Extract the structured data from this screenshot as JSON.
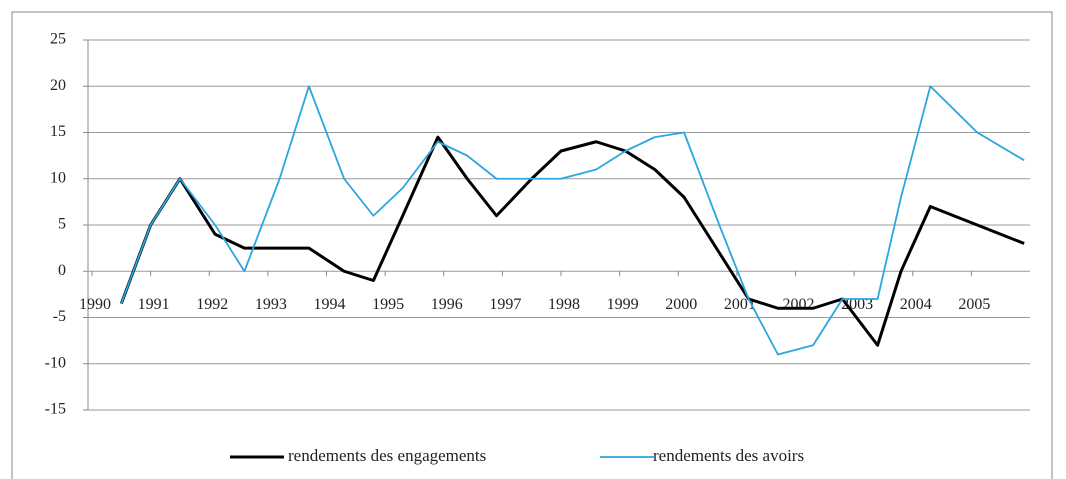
{
  "chart_data": {
    "type": "line",
    "x": [
      1990.5,
      1991.0,
      1991.5,
      1992.1,
      1992.6,
      1993.2,
      1993.7,
      1994.3,
      1994.8,
      1995.3,
      1995.9,
      1996.4,
      1996.9,
      1997.5,
      1998.0,
      1998.6,
      1999.1,
      1999.6,
      2000.1,
      2000.7,
      2001.2,
      2001.7,
      2002.3,
      2002.8,
      2003.4,
      2003.8,
      2004.3,
      2005.1,
      2005.9
    ],
    "series": [
      {
        "name": "rendements des engagements",
        "color": "#000000",
        "values": [
          -3.5,
          5,
          10,
          4,
          2.5,
          2.5,
          2.5,
          0,
          -1,
          6,
          14.5,
          10,
          6,
          10,
          13,
          14,
          13,
          11,
          8,
          2,
          -3,
          -4,
          -4,
          -3,
          -8,
          0,
          7,
          5,
          3
        ]
      },
      {
        "name": "rendements des avoirs",
        "color": "#2aa6e0",
        "values": [
          -3.5,
          5,
          10,
          5,
          0,
          10,
          20,
          10,
          6,
          9,
          14,
          12.5,
          10,
          10,
          10,
          11,
          13,
          14.5,
          15,
          5,
          -3,
          -9,
          -8,
          -3,
          -3,
          8,
          20,
          15,
          12
        ]
      }
    ],
    "xlim": [
      1990,
      2006
    ],
    "xticks": [
      1990,
      1991,
      1992,
      1993,
      1994,
      1995,
      1996,
      1997,
      1998,
      1999,
      2000,
      2001,
      2002,
      2003,
      2004,
      2005
    ],
    "ylim": [
      -15,
      25
    ],
    "yticks": [
      -15,
      -10,
      -5,
      0,
      5,
      10,
      15,
      20,
      25
    ],
    "grid": true,
    "legend": "bottom"
  }
}
